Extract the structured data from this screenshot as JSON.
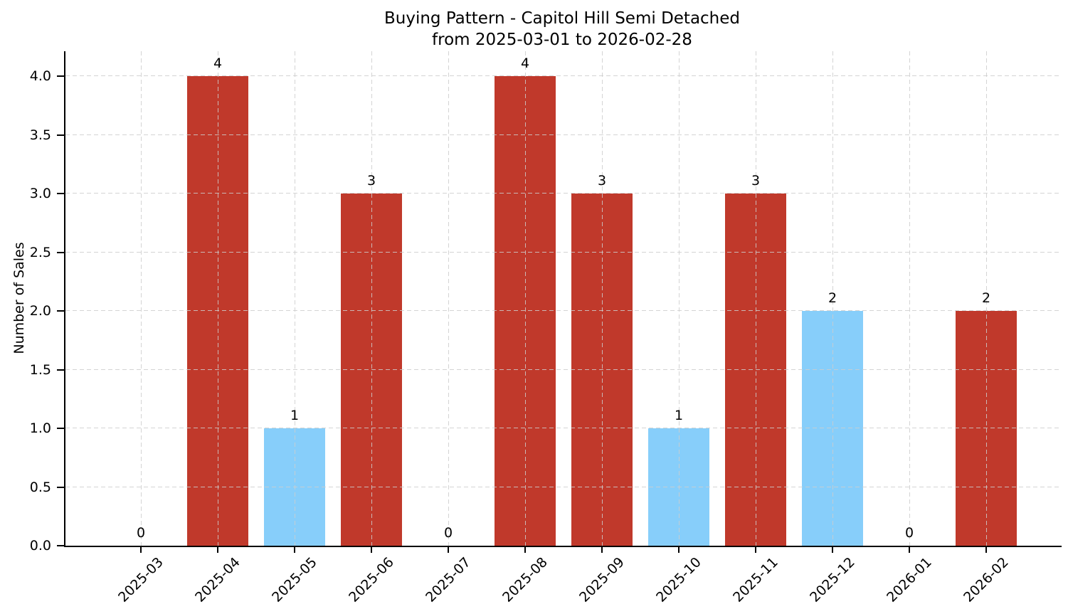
{
  "title": {
    "line1": "Buying Pattern - Capitol Hill Semi Detached",
    "line2": "from 2025-03-01 to 2026-02-28"
  },
  "y_axis": {
    "label": "Number of Sales",
    "tick_labels": [
      "0.0",
      "0.5",
      "1.0",
      "1.5",
      "2.0",
      "2.5",
      "3.0",
      "3.5",
      "4.0"
    ],
    "tick_values": [
      0,
      0.5,
      1,
      1.5,
      2,
      2.5,
      3,
      3.5,
      4
    ]
  },
  "chart_data": {
    "type": "bar",
    "title": "Buying Pattern - Capitol Hill Semi Detached from 2025-03-01 to 2026-02-28",
    "xlabel": "",
    "ylabel": "Number of Sales",
    "categories": [
      "2025-03",
      "2025-04",
      "2025-05",
      "2025-06",
      "2025-07",
      "2025-08",
      "2025-09",
      "2025-10",
      "2025-11",
      "2025-12",
      "2026-01",
      "2026-02"
    ],
    "values": [
      0,
      4,
      1,
      3,
      0,
      4,
      3,
      1,
      3,
      2,
      0,
      2
    ],
    "value_labels": [
      "0",
      "4",
      "1",
      "3",
      "0",
      "4",
      "3",
      "1",
      "3",
      "2",
      "0",
      "2"
    ],
    "bar_colors": [
      null,
      "#c0392b",
      "#87cefa",
      "#c0392b",
      null,
      "#c0392b",
      "#c0392b",
      "#87cefa",
      "#c0392b",
      "#87cefa",
      null,
      "#c0392b"
    ],
    "ylim": [
      0,
      4.21
    ],
    "grid": "dashed, horizontal and vertical, drawn over bars",
    "legend_position": "none",
    "x_tick_rotation": 45
  },
  "colors": {
    "bar_red": "#c0392b",
    "bar_blue": "#87cefa",
    "grid": "#cdcdcd",
    "axis": "#000000",
    "text": "#000000",
    "background": "#ffffff"
  }
}
